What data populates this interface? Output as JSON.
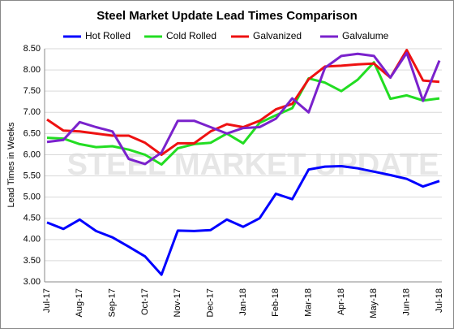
{
  "chart_data": {
    "type": "line",
    "title": "Steel Market Update Lead Times Comparison",
    "ylabel": "Lead Times in Weeks",
    "watermark": "STEEL MARKET UPDATE",
    "categories": [
      "Jul-17",
      null,
      "Aug-17",
      null,
      "Sep-17",
      null,
      "Oct-17",
      null,
      "Nov-17",
      null,
      "Dec-17",
      null,
      "Jan-18",
      null,
      "Feb-18",
      null,
      "Mar-18",
      null,
      "Apr-18",
      null,
      "May-18",
      null,
      "Jun-18",
      null,
      "Jul-18"
    ],
    "series": [
      {
        "name": "Hot Rolled",
        "color": "#0000ff",
        "values": [
          4.4,
          4.25,
          4.47,
          4.2,
          4.05,
          3.83,
          3.6,
          3.17,
          4.21,
          4.2,
          4.22,
          4.47,
          4.3,
          4.5,
          5.08,
          4.95,
          5.65,
          5.72,
          5.73,
          5.68,
          5.6,
          5.52,
          5.43,
          5.25,
          5.38
        ]
      },
      {
        "name": "Cold Rolled",
        "color": "#22dd22",
        "values": [
          6.4,
          6.38,
          6.25,
          6.18,
          6.2,
          6.12,
          6.0,
          5.77,
          6.15,
          6.25,
          6.28,
          6.5,
          6.27,
          6.75,
          6.93,
          7.1,
          7.8,
          7.7,
          7.5,
          7.77,
          8.18,
          7.32,
          7.4,
          7.28,
          7.33
        ]
      },
      {
        "name": "Galvanized",
        "color": "#ee1111",
        "values": [
          6.83,
          6.57,
          6.55,
          6.5,
          6.45,
          6.45,
          6.28,
          6.0,
          6.27,
          6.27,
          6.55,
          6.72,
          6.65,
          6.8,
          7.07,
          7.2,
          7.78,
          8.08,
          8.1,
          8.13,
          8.15,
          7.82,
          8.47,
          7.75,
          7.72
        ]
      },
      {
        "name": "Galvalume",
        "color": "#7a22cc",
        "values": [
          6.3,
          6.35,
          6.77,
          6.65,
          6.55,
          5.9,
          5.78,
          6.05,
          6.8,
          6.8,
          6.65,
          6.5,
          6.63,
          6.65,
          6.85,
          7.33,
          7.0,
          8.05,
          8.33,
          8.38,
          8.33,
          7.82,
          8.4,
          7.27,
          8.22
        ]
      }
    ],
    "ylim": [
      3,
      8.5
    ],
    "yticks": [
      {
        "value": 3,
        "label": "3.00"
      },
      {
        "value": 3.5,
        "label": "3.50"
      },
      {
        "value": 4,
        "label": "4.00"
      },
      {
        "value": 4.5,
        "label": "4.50"
      },
      {
        "value": 5,
        "label": "5.00"
      },
      {
        "value": 5.5,
        "label": "5.50"
      },
      {
        "value": 6,
        "label": "6.00"
      },
      {
        "value": 6.5,
        "label": "6.50"
      },
      {
        "value": 7,
        "label": "7.00"
      },
      {
        "value": 7.5,
        "label": "7.50"
      },
      {
        "value": 8,
        "label": "8.00"
      },
      {
        "value": 8.5,
        "label": "8.50"
      }
    ],
    "grid": true,
    "legend": "top"
  }
}
